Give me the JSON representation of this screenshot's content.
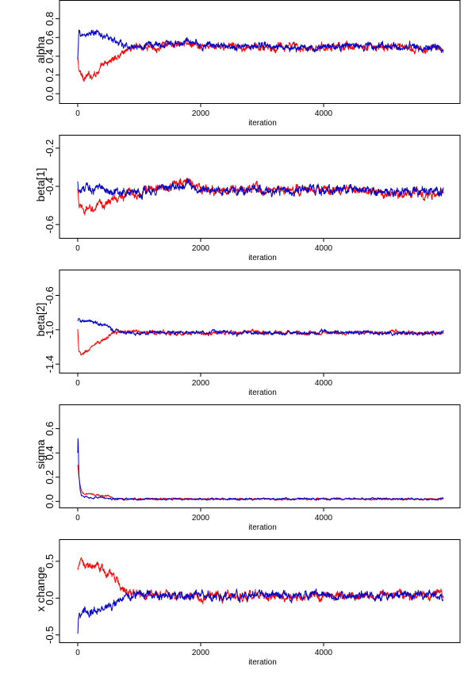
{
  "chart_data": [
    {
      "type": "line",
      "ylabel": "alpha",
      "xlabel": "iteration",
      "xlim": [
        -300,
        6000
      ],
      "ylim": [
        -0.1,
        1.0
      ],
      "x_ticks": [
        "0",
        "2000",
        "4000"
      ],
      "y_ticks": [
        "0.0",
        "0.2",
        "0.4",
        "0.6",
        "0.8"
      ],
      "y_tick_values": [
        0.0,
        0.2,
        0.4,
        0.6,
        0.8
      ],
      "grid": false,
      "n_iter": 6000,
      "series": [
        {
          "color": "#ff0000",
          "x": [
            0,
            20,
            50,
            100,
            200,
            300,
            400,
            500,
            600,
            700,
            800,
            900,
            1000,
            1500,
            1800,
            2000,
            3000,
            4000,
            5000,
            5950
          ],
          "values": [
            0.38,
            0.25,
            0.2,
            0.18,
            0.19,
            0.23,
            0.28,
            0.34,
            0.38,
            0.43,
            0.48,
            0.49,
            0.5,
            0.51,
            0.53,
            0.5,
            0.5,
            0.5,
            0.5,
            0.48
          ],
          "noise": 0.02
        },
        {
          "color": "#0000cc",
          "x": [
            0,
            20,
            50,
            100,
            200,
            300,
            400,
            500,
            600,
            700,
            800,
            900,
            1000,
            1500,
            1800,
            2000,
            3000,
            4000,
            5000,
            5950
          ],
          "values": [
            0.35,
            0.64,
            0.63,
            0.63,
            0.64,
            0.64,
            0.63,
            0.6,
            0.56,
            0.52,
            0.5,
            0.5,
            0.51,
            0.53,
            0.55,
            0.51,
            0.51,
            0.5,
            0.51,
            0.49
          ],
          "noise": 0.02
        }
      ]
    },
    {
      "type": "line",
      "ylabel": "beta[1]",
      "xlabel": "iteration",
      "xlim": [
        -300,
        6000
      ],
      "ylim": [
        -0.67,
        -0.13
      ],
      "x_ticks": [
        "0",
        "2000",
        "4000"
      ],
      "y_ticks": [
        "-0.6",
        "-0.4",
        "-0.2"
      ],
      "y_tick_values": [
        -0.6,
        -0.4,
        -0.2
      ],
      "grid": false,
      "n_iter": 6000,
      "series": [
        {
          "color": "#ff0000",
          "x": [
            0,
            20,
            50,
            100,
            200,
            300,
            400,
            500,
            600,
            700,
            800,
            900,
            1000,
            1500,
            1800,
            2000,
            3000,
            4000,
            5000,
            5950
          ],
          "values": [
            -0.42,
            -0.5,
            -0.52,
            -0.53,
            -0.52,
            -0.51,
            -0.5,
            -0.48,
            -0.47,
            -0.45,
            -0.44,
            -0.43,
            -0.43,
            -0.4,
            -0.37,
            -0.42,
            -0.42,
            -0.42,
            -0.43,
            -0.44
          ],
          "noise": 0.012
        },
        {
          "color": "#0000cc",
          "x": [
            0,
            20,
            50,
            100,
            200,
            300,
            400,
            500,
            600,
            700,
            800,
            900,
            1000,
            1500,
            1800,
            2000,
            3000,
            4000,
            5000,
            5950
          ],
          "values": [
            -0.38,
            -0.42,
            -0.41,
            -0.41,
            -0.42,
            -0.41,
            -0.41,
            -0.42,
            -0.43,
            -0.43,
            -0.43,
            -0.43,
            -0.43,
            -0.41,
            -0.39,
            -0.42,
            -0.42,
            -0.41,
            -0.43,
            -0.43
          ],
          "noise": 0.012
        }
      ]
    },
    {
      "type": "line",
      "ylabel": "beta[2]",
      "xlabel": "iteration",
      "xlim": [
        -300,
        6000
      ],
      "ylim": [
        -1.5,
        -0.3
      ],
      "x_ticks": [
        "0",
        "2000",
        "4000"
      ],
      "y_ticks": [
        "-1.4",
        "-1.0",
        "-0.6"
      ],
      "y_tick_values": [
        -1.4,
        -1.0,
        -0.6
      ],
      "grid": false,
      "n_iter": 6000,
      "series": [
        {
          "color": "#ff0000",
          "x": [
            0,
            20,
            50,
            100,
            200,
            300,
            400,
            500,
            600,
            700,
            800,
            1000,
            2000,
            3000,
            4000,
            5000,
            5950
          ],
          "values": [
            -1.0,
            -1.25,
            -1.3,
            -1.28,
            -1.22,
            -1.18,
            -1.13,
            -1.07,
            -1.03,
            -1.02,
            -1.03,
            -1.03,
            -1.04,
            -1.03,
            -1.04,
            -1.03,
            -1.04
          ],
          "noise": 0.012
        },
        {
          "color": "#0000cc",
          "x": [
            0,
            20,
            50,
            100,
            200,
            300,
            400,
            500,
            600,
            700,
            800,
            1000,
            2000,
            3000,
            4000,
            5000,
            5950
          ],
          "values": [
            -0.9,
            -0.88,
            -0.89,
            -0.9,
            -0.91,
            -0.92,
            -0.94,
            -0.97,
            -1.01,
            -1.03,
            -1.03,
            -1.03,
            -1.03,
            -1.04,
            -1.03,
            -1.04,
            -1.03
          ],
          "noise": 0.012
        }
      ]
    },
    {
      "type": "line",
      "ylabel": "sigma",
      "xlabel": "iteration",
      "xlim": [
        -300,
        6000
      ],
      "ylim": [
        -0.05,
        0.8
      ],
      "x_ticks": [
        "0",
        "2000",
        "4000"
      ],
      "y_ticks": [
        "0.0",
        "0.2",
        "0.4",
        "0.6"
      ],
      "y_tick_values": [
        0.0,
        0.2,
        0.4,
        0.6
      ],
      "grid": false,
      "n_iter": 6000,
      "series": [
        {
          "color": "#ff0000",
          "x": [
            0,
            10,
            30,
            60,
            100,
            200,
            300,
            400,
            500,
            550,
            600,
            800,
            1000,
            2000,
            3000,
            4000,
            5000,
            5950
          ],
          "values": [
            0.3,
            0.25,
            0.15,
            0.08,
            0.06,
            0.06,
            0.05,
            0.05,
            0.05,
            0.03,
            0.02,
            0.02,
            0.02,
            0.02,
            0.02,
            0.02,
            0.02,
            0.02
          ],
          "noise": 0.004
        },
        {
          "color": "#0000cc",
          "x": [
            0,
            5,
            10,
            20,
            40,
            60,
            100,
            200,
            300,
            400,
            500,
            600,
            800,
            1000,
            2000,
            3000,
            4000,
            5000,
            5950
          ],
          "values": [
            0.4,
            0.55,
            0.45,
            0.22,
            0.1,
            0.06,
            0.04,
            0.03,
            0.03,
            0.03,
            0.025,
            0.02,
            0.02,
            0.02,
            0.02,
            0.02,
            0.02,
            0.02,
            0.02
          ],
          "noise": 0.004
        }
      ]
    },
    {
      "type": "line",
      "ylabel": "x change",
      "xlabel": "iteration",
      "xlim": [
        -300,
        6000
      ],
      "ylim": [
        -0.6,
        0.8
      ],
      "x_ticks": [
        "0",
        "2000",
        "4000"
      ],
      "y_ticks": [
        "-0.5",
        "0.0",
        "0.5"
      ],
      "y_tick_values": [
        -0.5,
        0.0,
        0.5
      ],
      "grid": false,
      "n_iter": 6000,
      "series": [
        {
          "color": "#ff0000",
          "x": [
            0,
            20,
            50,
            100,
            200,
            300,
            400,
            500,
            600,
            700,
            800,
            900,
            1000,
            1500,
            2000,
            3000,
            4000,
            5000,
            5950
          ],
          "values": [
            0.4,
            0.45,
            0.47,
            0.47,
            0.46,
            0.42,
            0.38,
            0.33,
            0.25,
            0.17,
            0.1,
            0.06,
            0.05,
            0.04,
            0.03,
            0.04,
            0.03,
            0.04,
            0.05
          ],
          "noise": 0.03
        },
        {
          "color": "#0000cc",
          "x": [
            0,
            10,
            30,
            60,
            100,
            200,
            300,
            400,
            500,
            600,
            700,
            800,
            900,
            1000,
            1500,
            2000,
            3000,
            4000,
            5000,
            5950
          ],
          "values": [
            -0.52,
            -0.3,
            -0.2,
            -0.18,
            -0.17,
            -0.17,
            -0.16,
            -0.16,
            -0.13,
            -0.08,
            -0.03,
            0.02,
            0.04,
            0.05,
            0.04,
            0.03,
            0.04,
            0.03,
            0.04,
            0.05
          ],
          "noise": 0.03
        }
      ]
    }
  ]
}
